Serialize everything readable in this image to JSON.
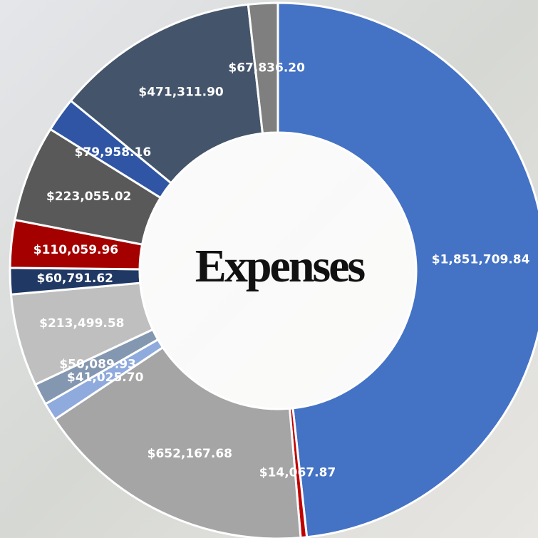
{
  "chart_data": {
    "type": "donut",
    "title": "Expenses",
    "values": [
      1851709.84,
      14067.87,
      652167.68,
      41025.7,
      50089.93,
      213499.58,
      60791.62,
      110059.96,
      223055.02,
      79958.16,
      471311.9,
      67836.2
    ],
    "value_labels": [
      "$1,851,709.84",
      "$14,067.87",
      "$652,167.68",
      "$41,025.70",
      "$50,089.93",
      "$213,499.58",
      "$60,791.62",
      "$110,059.96",
      "$223,055.02",
      "$79,958.16",
      "$471,311.90",
      "$67,836.20"
    ],
    "colors": [
      "#4472c4",
      "#c00000",
      "#a5a5a5",
      "#8faadc",
      "#8497b0",
      "#bfbfbf",
      "#203864",
      "#a50000",
      "#595959",
      "#2f55a4",
      "#44546a",
      "#7f7f7f"
    ]
  }
}
